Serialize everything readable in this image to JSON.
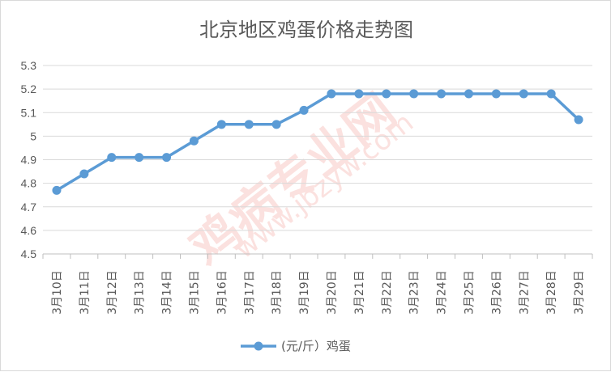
{
  "chart_data": {
    "type": "line",
    "title": "北京地区鸡蛋价格走势图",
    "xlabel": "",
    "ylabel": "",
    "categories": [
      "3月10日",
      "3月11日",
      "3月12日",
      "3月13日",
      "3月14日",
      "3月15日",
      "3月16日",
      "3月17日",
      "3月18日",
      "3月19日",
      "3月20日",
      "3月21日",
      "3月22日",
      "3月23日",
      "3月24日",
      "3月25日",
      "3月26日",
      "3月27日",
      "3月28日",
      "3月29日"
    ],
    "series": [
      {
        "name": "(元/斤）鸡蛋",
        "values": [
          4.77,
          4.84,
          4.91,
          4.91,
          4.91,
          4.98,
          5.05,
          5.05,
          5.05,
          5.11,
          5.18,
          5.18,
          5.18,
          5.18,
          5.18,
          5.18,
          5.18,
          5.18,
          5.18,
          5.07
        ],
        "color": "#5b9bd5"
      }
    ],
    "ylim": [
      4.5,
      5.3
    ],
    "yticks": [
      "4.5",
      "4.6",
      "4.7",
      "4.8",
      "4.9",
      "5",
      "5.1",
      "5.2",
      "5.3"
    ],
    "grid": true,
    "legend_position": "bottom",
    "watermark": "鸡病专业网 www.jbzyw.com"
  }
}
